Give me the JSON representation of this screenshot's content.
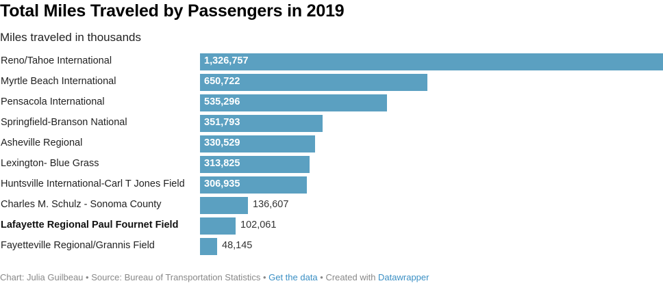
{
  "chart_data": {
    "type": "bar",
    "orientation": "horizontal",
    "title": "Total Miles Traveled by Passengers in 2019",
    "subtitle": "Miles traveled in thousands",
    "xlabel": "",
    "ylabel": "",
    "xlim": [
      0,
      1326757
    ],
    "grid": false,
    "bar_color": "#5ba0c1",
    "categories": [
      "Reno/Tahoe International",
      "Myrtle Beach International",
      "Pensacola International",
      "Springfield-Branson National",
      "Asheville Regional",
      "Lexington- Blue Grass",
      "Huntsville International-Carl T Jones Field",
      "Charles M. Schulz - Sonoma County",
      "Lafayette Regional Paul Fournet Field",
      "Fayetteville Regional/Grannis Field"
    ],
    "values": [
      1326757,
      650722,
      535296,
      351793,
      330529,
      313825,
      306935,
      136607,
      102061,
      48145
    ],
    "value_labels": [
      "1,326,757",
      "650,722",
      "535,296",
      "351,793",
      "330,529",
      "313,825",
      "306,935",
      "136,607",
      "102,061",
      "48,145"
    ],
    "highlighted_category": "Lafayette Regional Paul Fournet Field"
  },
  "footer": {
    "chart_credit": "Chart: Julia Guilbeau",
    "separator": " • ",
    "source": "Source: Bureau of Transportation Statistics",
    "get_data_link": "Get the data",
    "created_with": "Created with ",
    "datawrapper_link": "Datawrapper"
  }
}
